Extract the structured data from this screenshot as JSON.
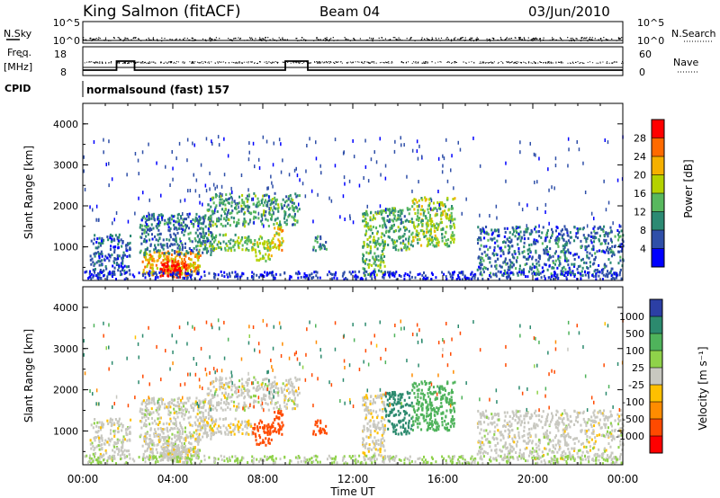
{
  "header": {
    "station": "King Salmon (fitACF)",
    "beam": "Beam 04",
    "date": "03/Jun/2010"
  },
  "status_panel": {
    "nsky_label": "N.Sky",
    "nsearch_label": "N.Search",
    "freq_label": "Freq.",
    "freq_unit": "[MHz]",
    "nave_label": "Nave",
    "cpid_label": "CPID",
    "cpid_value": "normalsound (fast) 157",
    "noise_left_ticks": [
      "10^5",
      "10^0"
    ],
    "noise_right_ticks": [
      "10^5",
      "10^0"
    ],
    "freq_ticks": [
      "18",
      "8"
    ],
    "nave_ticks": [
      "60",
      "0"
    ],
    "freq_steps": [
      {
        "t0": 0.0,
        "t1": 1.5,
        "mhz": 10
      },
      {
        "t0": 1.5,
        "t1": 2.3,
        "mhz": 15
      },
      {
        "t0": 2.3,
        "t1": 9.0,
        "mhz": 10
      },
      {
        "t0": 9.0,
        "t1": 10.0,
        "mhz": 15
      },
      {
        "t0": 10.0,
        "t1": 24.0,
        "mhz": 10
      }
    ]
  },
  "power_panel": {
    "ylabel": "Slant Range [km]",
    "colorbar_label": "Power [dB]",
    "colorbar_ticks": [
      "28",
      "24",
      "20",
      "16",
      "12",
      "8",
      "4"
    ]
  },
  "velocity_panel": {
    "ylabel": "Slant Range [km]",
    "colorbar_label": "Velocity [m s⁻¹]",
    "colorbar_ticks": [
      "1000",
      "500",
      "100",
      "25",
      "-25",
      "-100",
      "-500",
      "-1000"
    ]
  },
  "xaxis": {
    "label": "Time UT",
    "ticks": [
      "00:00",
      "04:00",
      "08:00",
      "12:00",
      "16:00",
      "20:00",
      "00:00"
    ]
  },
  "yaxis_ticks": [
    "4000",
    "3000",
    "2000",
    "1000"
  ],
  "colors": {
    "power_scale": [
      "#ff0000",
      "#ff6a00",
      "#f5b000",
      "#b4d200",
      "#58b85e",
      "#2c8a73",
      "#2f4fa8",
      "#0000ff"
    ],
    "velocity_scale": [
      "#2c3fa5",
      "#2c8a6e",
      "#4fb35b",
      "#8fd24a",
      "#c8c8c0",
      "#ffc000",
      "#ff8c00",
      "#ff4a00",
      "#ff0000"
    ]
  },
  "chart_data": {
    "type": "heatmap",
    "x_range_hours": [
      0,
      24
    ],
    "y_range_km": [
      180,
      4500
    ],
    "clusters": [
      {
        "t0": 0.3,
        "t1": 2.1,
        "r0": 300,
        "r1": 1300,
        "density": 0.55,
        "power": 6,
        "velocity": 0
      },
      {
        "t0": 2.6,
        "t1": 5.2,
        "r0": 300,
        "r1": 900,
        "density": 0.85,
        "power": 22,
        "velocity": 0
      },
      {
        "t0": 3.4,
        "t1": 4.6,
        "r0": 250,
        "r1": 650,
        "density": 0.95,
        "power": 30,
        "velocity": 0
      },
      {
        "t0": 2.5,
        "t1": 5.8,
        "r0": 800,
        "r1": 1800,
        "density": 0.55,
        "power": 8,
        "velocity": 0
      },
      {
        "t0": 5.0,
        "t1": 7.5,
        "r0": 900,
        "r1": 1300,
        "density": 0.55,
        "power": 14,
        "velocity": -20
      },
      {
        "t0": 5.5,
        "t1": 9.6,
        "r0": 1500,
        "r1": 2300,
        "density": 0.5,
        "power": 12,
        "velocity": 0
      },
      {
        "t0": 7.5,
        "t1": 8.4,
        "r0": 650,
        "r1": 1250,
        "density": 0.6,
        "power": 18,
        "velocity": -400
      },
      {
        "t0": 8.4,
        "t1": 8.9,
        "r0": 900,
        "r1": 1500,
        "density": 0.7,
        "power": 20,
        "velocity": -500
      },
      {
        "t0": 10.2,
        "t1": 10.8,
        "r0": 900,
        "r1": 1250,
        "density": 0.6,
        "power": 10,
        "velocity": -350
      },
      {
        "t0": 12.4,
        "t1": 13.4,
        "r0": 300,
        "r1": 1900,
        "density": 0.6,
        "power": 14,
        "velocity": -10
      },
      {
        "t0": 13.4,
        "t1": 14.6,
        "r0": 900,
        "r1": 1950,
        "density": 0.55,
        "power": 12,
        "velocity": 250
      },
      {
        "t0": 14.6,
        "t1": 16.5,
        "r0": 1000,
        "r1": 2200,
        "density": 0.6,
        "power": 16,
        "velocity": 120
      },
      {
        "t0": 17.5,
        "t1": 24.0,
        "r0": 300,
        "r1": 1500,
        "density": 0.45,
        "power": 8,
        "velocity": 0
      }
    ]
  }
}
